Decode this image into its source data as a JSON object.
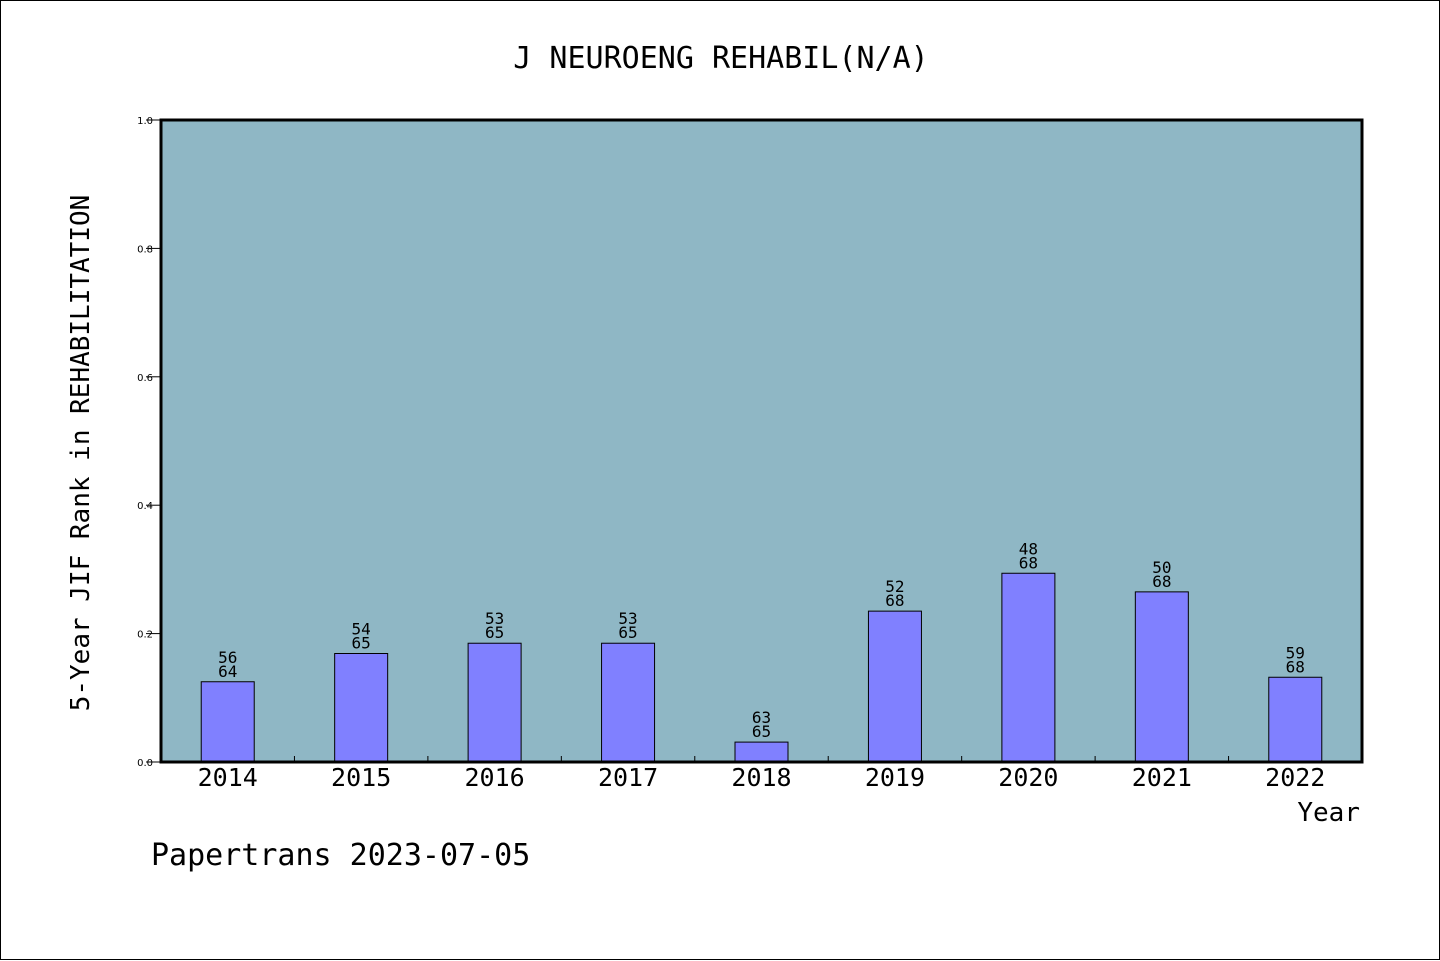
{
  "chart_data": {
    "type": "bar",
    "title": "J NEUROENG REHABIL(N/A)",
    "xlabel": "Year",
    "ylabel": "5-Year JIF Rank in REHABILITATION",
    "ylim": [
      0,
      1.0
    ],
    "yticks": [
      "0.0",
      "0.2",
      "0.4",
      "0.6",
      "0.8",
      "1.0"
    ],
    "categories": [
      "2014",
      "2015",
      "2016",
      "2017",
      "2018",
      "2019",
      "2020",
      "2021",
      "2022"
    ],
    "values": [
      0.125,
      0.169,
      0.185,
      0.185,
      0.031,
      0.235,
      0.294,
      0.265,
      0.132
    ],
    "rank_labels": [
      [
        "56",
        "64"
      ],
      [
        "54",
        "65"
      ],
      [
        "53",
        "65"
      ],
      [
        "53",
        "65"
      ],
      [
        "63",
        "65"
      ],
      [
        "52",
        "68"
      ],
      [
        "48",
        "68"
      ],
      [
        "50",
        "68"
      ],
      [
        "59",
        "68"
      ]
    ],
    "grid": false,
    "colors": {
      "plot_background": "#8fb7c5",
      "bar_fill": "#8080ff",
      "bar_stroke": "#000000"
    }
  },
  "footer": {
    "text": "Papertrans 2023-07-05"
  }
}
